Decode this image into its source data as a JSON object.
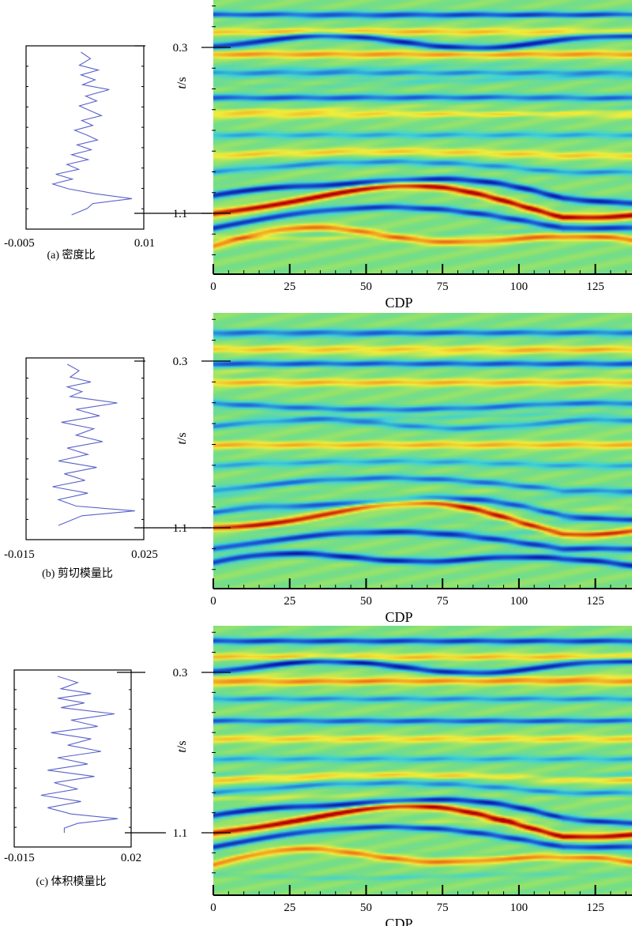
{
  "chart_data": [
    {
      "type": "line",
      "panel": "a",
      "caption": "(a) 密度比",
      "x_tick_labels": [
        "-0.005",
        "0.01"
      ],
      "xlim": [
        -0.005,
        0.01
      ],
      "series": [
        {
          "depth_fraction": [
            0.0,
            0.04,
            0.08,
            0.11,
            0.14,
            0.17,
            0.2,
            0.23,
            0.27,
            0.3,
            0.33,
            0.36,
            0.39,
            0.42,
            0.45,
            0.48,
            0.51,
            0.54,
            0.57,
            0.6,
            0.63,
            0.66,
            0.69,
            0.72,
            0.75,
            0.78,
            0.81,
            0.84,
            0.87,
            0.9,
            0.93,
            0.96,
            1.0
          ],
          "values": [
            0.002,
            0.0032,
            0.0018,
            0.0042,
            0.002,
            0.0038,
            0.0022,
            0.0056,
            0.0026,
            0.004,
            0.0018,
            0.0032,
            0.0046,
            0.0021,
            0.0035,
            0.0012,
            0.0028,
            0.0041,
            0.0015,
            0.0033,
            0.0008,
            0.0029,
            0.0002,
            0.0017,
            -0.0012,
            0.0009,
            -0.0016,
            0.0004,
            0.0038,
            0.0085,
            0.0035,
            0.0028,
            0.0008
          ]
        }
      ]
    },
    {
      "type": "line",
      "panel": "b",
      "caption": "(b) 剪切模量比",
      "x_tick_labels": [
        "-0.015",
        "0.025"
      ],
      "xlim": [
        -0.015,
        0.025
      ],
      "series": [
        {
          "depth_fraction": [
            0.0,
            0.04,
            0.08,
            0.11,
            0.14,
            0.17,
            0.2,
            0.24,
            0.28,
            0.32,
            0.36,
            0.4,
            0.44,
            0.48,
            0.52,
            0.56,
            0.6,
            0.64,
            0.68,
            0.72,
            0.76,
            0.8,
            0.84,
            0.88,
            0.91,
            0.94,
            0.97,
            1.0
          ],
          "values": [
            -0.001,
            0.003,
            0.0,
            0.007,
            -0.001,
            0.004,
            0.0,
            0.016,
            0.002,
            0.01,
            -0.003,
            0.008,
            0.002,
            0.011,
            -0.001,
            0.006,
            -0.004,
            0.009,
            -0.002,
            0.005,
            -0.006,
            0.006,
            -0.004,
            0.002,
            0.022,
            0.004,
            0.0,
            -0.004
          ]
        }
      ]
    },
    {
      "type": "line",
      "panel": "c",
      "caption": "(c) 体积模量比",
      "x_tick_labels": [
        "-0.015",
        "0.02"
      ],
      "xlim": [
        -0.015,
        0.02
      ],
      "series": [
        {
          "depth_fraction": [
            0.0,
            0.04,
            0.08,
            0.11,
            0.14,
            0.17,
            0.2,
            0.24,
            0.28,
            0.32,
            0.36,
            0.4,
            0.44,
            0.48,
            0.52,
            0.56,
            0.6,
            0.64,
            0.68,
            0.72,
            0.76,
            0.8,
            0.84,
            0.88,
            0.91,
            0.94,
            0.97,
            1.0
          ],
          "values": [
            -0.002,
            0.004,
            -0.001,
            0.008,
            -0.002,
            0.006,
            -0.001,
            0.015,
            0.002,
            0.01,
            -0.004,
            0.008,
            0.001,
            0.011,
            -0.002,
            0.007,
            -0.005,
            0.009,
            -0.003,
            0.004,
            -0.007,
            0.005,
            -0.005,
            0.002,
            0.016,
            0.004,
            0.0,
            0.0
          ]
        }
      ]
    },
    {
      "type": "heatmap",
      "panel": "a",
      "xlabel": "CDP",
      "ylabel_italic": "t",
      "ylabel_rest": "/s",
      "x_ticks": [
        0,
        25,
        50,
        75,
        100,
        125
      ],
      "xlim": [
        0,
        137
      ],
      "y_ticks": [
        0.3,
        1.1
      ],
      "ylim": [
        0.1,
        1.35
      ],
      "reflectors": [
        {
          "t": 0.14,
          "polarity": -0.9,
          "dip": 0.0,
          "bump": 0.0
        },
        {
          "t": 0.22,
          "polarity": 0.6,
          "dip": 0.0,
          "bump": 0.0
        },
        {
          "t": 0.27,
          "polarity": -1.0,
          "dip": 0.0,
          "bump": 0.03
        },
        {
          "t": 0.33,
          "polarity": 0.7,
          "dip": 0.0,
          "bump": 0.0
        },
        {
          "t": 0.42,
          "polarity": -0.6,
          "dip": 0.0,
          "bump": 0.0
        },
        {
          "t": 0.54,
          "polarity": -0.8,
          "dip": 0.0,
          "bump": 0.0
        },
        {
          "t": 0.62,
          "polarity": 0.5,
          "dip": 0.0,
          "bump": 0.0
        },
        {
          "t": 0.72,
          "polarity": -0.5,
          "dip": 0.0,
          "bump": 0.0
        },
        {
          "t": 0.82,
          "polarity": 0.5,
          "dip": 0.02,
          "bump": 0.0
        },
        {
          "t": 0.9,
          "polarity": -0.6,
          "dip": 0.05,
          "bump": 0.0
        },
        {
          "t": 1.03,
          "polarity": -1.0,
          "dip": 0.1,
          "bump": 0.02
        },
        {
          "t": 1.1,
          "polarity": 1.2,
          "dip": 0.12,
          "bump": 0.02
        },
        {
          "t": 1.17,
          "polarity": -0.9,
          "dip": 0.1,
          "bump": 0.0
        },
        {
          "t": 1.25,
          "polarity": 0.8,
          "dip": 0.06,
          "bump": 0.04
        }
      ],
      "colormap": [
        "#00008b",
        "#1e5fd8",
        "#3fd1d6",
        "#7fe07a",
        "#f2ee3a",
        "#f28a1d",
        "#b40000"
      ]
    },
    {
      "type": "heatmap",
      "panel": "b",
      "xlabel": "CDP",
      "ylabel_italic": "t",
      "ylabel_rest": "/s",
      "x_ticks": [
        0,
        25,
        50,
        75,
        100,
        125
      ],
      "xlim": [
        0,
        137
      ],
      "y_ticks": [
        0.3,
        1.1
      ],
      "ylim": [
        0.1,
        1.35
      ],
      "reflectors": [
        {
          "t": 0.16,
          "polarity": -0.7,
          "dip": 0.0,
          "bump": 0.0
        },
        {
          "t": 0.24,
          "polarity": 0.5,
          "dip": 0.0,
          "bump": 0.0
        },
        {
          "t": 0.31,
          "polarity": -0.8,
          "dip": 0.0,
          "bump": 0.0
        },
        {
          "t": 0.4,
          "polarity": 0.6,
          "dip": 0.0,
          "bump": 0.0
        },
        {
          "t": 0.5,
          "polarity": -0.7,
          "dip": -0.03,
          "bump": 0.0
        },
        {
          "t": 0.6,
          "polarity": -0.6,
          "dip": 0.0,
          "bump": 0.02
        },
        {
          "t": 0.7,
          "polarity": 0.6,
          "dip": 0.0,
          "bump": 0.0
        },
        {
          "t": 0.8,
          "polarity": -0.5,
          "dip": 0.02,
          "bump": 0.0
        },
        {
          "t": 0.92,
          "polarity": -0.7,
          "dip": 0.06,
          "bump": 0.0
        },
        {
          "t": 1.04,
          "polarity": -0.8,
          "dip": 0.08,
          "bump": 0.02
        },
        {
          "t": 1.1,
          "polarity": 1.1,
          "dip": 0.1,
          "bump": 0.03
        },
        {
          "t": 1.2,
          "polarity": -0.9,
          "dip": 0.08,
          "bump": 0.0
        },
        {
          "t": 1.28,
          "polarity": -1.0,
          "dip": 0.05,
          "bump": 0.03
        }
      ],
      "colormap": [
        "#00008b",
        "#1e5fd8",
        "#3fd1d6",
        "#7fe07a",
        "#f2ee3a",
        "#f28a1d",
        "#b40000"
      ]
    },
    {
      "type": "heatmap",
      "panel": "c",
      "xlabel": "CDP",
      "ylabel_italic": "t",
      "ylabel_rest": "/s",
      "x_ticks": [
        0,
        25,
        50,
        75,
        100,
        125
      ],
      "xlim": [
        0,
        137
      ],
      "y_ticks": [
        0.3,
        1.1
      ],
      "ylim": [
        0.1,
        1.35
      ],
      "reflectors": [
        {
          "t": 0.14,
          "polarity": -0.9,
          "dip": 0.0,
          "bump": 0.0
        },
        {
          "t": 0.22,
          "polarity": 0.6,
          "dip": 0.0,
          "bump": 0.0
        },
        {
          "t": 0.27,
          "polarity": -1.0,
          "dip": 0.0,
          "bump": 0.03
        },
        {
          "t": 0.34,
          "polarity": 0.7,
          "dip": 0.0,
          "bump": 0.0
        },
        {
          "t": 0.43,
          "polarity": -0.6,
          "dip": 0.0,
          "bump": 0.0
        },
        {
          "t": 0.54,
          "polarity": -0.8,
          "dip": 0.0,
          "bump": 0.0
        },
        {
          "t": 0.63,
          "polarity": 0.5,
          "dip": 0.0,
          "bump": 0.0
        },
        {
          "t": 0.73,
          "polarity": -0.5,
          "dip": 0.0,
          "bump": 0.0
        },
        {
          "t": 0.83,
          "polarity": 0.5,
          "dip": 0.02,
          "bump": 0.0
        },
        {
          "t": 0.9,
          "polarity": -0.6,
          "dip": 0.05,
          "bump": 0.0
        },
        {
          "t": 1.03,
          "polarity": -1.0,
          "dip": 0.1,
          "bump": 0.02
        },
        {
          "t": 1.1,
          "polarity": 1.2,
          "dip": 0.12,
          "bump": 0.02
        },
        {
          "t": 1.17,
          "polarity": -0.9,
          "dip": 0.1,
          "bump": 0.0
        },
        {
          "t": 1.26,
          "polarity": 0.8,
          "dip": 0.06,
          "bump": 0.04
        }
      ],
      "colormap": [
        "#00008b",
        "#1e5fd8",
        "#3fd1d6",
        "#7fe07a",
        "#f2ee3a",
        "#f28a1d",
        "#b40000"
      ]
    }
  ]
}
